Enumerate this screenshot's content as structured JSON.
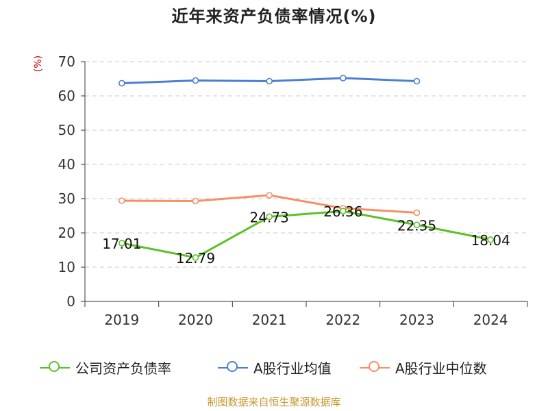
{
  "title": "近年来资产负债率情况(%)",
  "source": "制图数据来自恒生聚源数据库",
  "chart_data": {
    "type": "line",
    "categories": [
      "2019",
      "2020",
      "2021",
      "2022",
      "2023",
      "2024"
    ],
    "ylabel": "(%)",
    "ylim": [
      0,
      70
    ],
    "yticks": [
      "0",
      "10",
      "20",
      "30",
      "40",
      "50",
      "60",
      "70"
    ],
    "grid": "horizontal dashed",
    "legend_position": "bottom",
    "series": [
      {
        "name": "公司资产负债率",
        "color": "#5ac128",
        "values": [
          17.01,
          12.79,
          24.73,
          26.36,
          22.35,
          18.04
        ],
        "labels": [
          "17.01",
          "12.79",
          "24.73",
          "26.36",
          "22.35",
          "18.04"
        ]
      },
      {
        "name": "A股行业均值",
        "color": "#4a7fd6",
        "values": [
          63.7,
          64.5,
          64.3,
          65.2,
          64.3,
          null
        ]
      },
      {
        "name": "A股行业中位数",
        "color": "#f59066",
        "values": [
          29.4,
          29.3,
          31.0,
          27.2,
          25.9,
          null
        ]
      }
    ]
  }
}
